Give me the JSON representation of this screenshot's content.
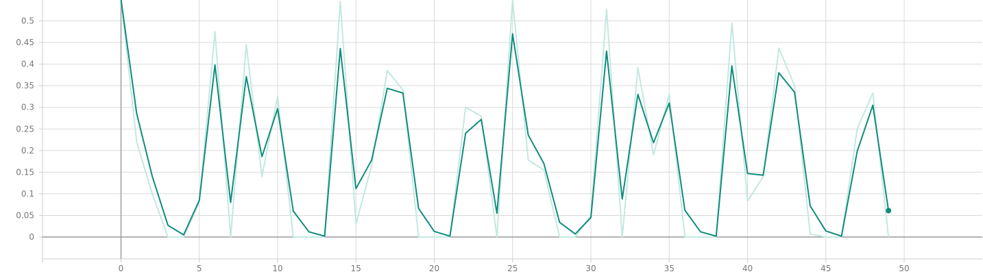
{
  "chart_data": {
    "type": "line",
    "title": "",
    "xlabel": "",
    "ylabel": "",
    "xlim": [
      -5,
      55
    ],
    "ylim": [
      -0.05,
      0.55
    ],
    "grid": true,
    "x_ticks": [
      "0",
      "5",
      "10",
      "15",
      "20",
      "25",
      "30",
      "35",
      "40",
      "45",
      "50"
    ],
    "y_ticks": [
      "0",
      "0.05",
      "0.1",
      "0.15",
      "0.2",
      "0.25",
      "0.3",
      "0.35",
      "0.4",
      "0.45",
      "0.5"
    ],
    "colors": {
      "smoothed": "#0f8c7b",
      "raw": "#c3e8e1"
    },
    "series": [
      {
        "role": "raw",
        "x": [
          0,
          1,
          2,
          3,
          4,
          5,
          6,
          7,
          8,
          9,
          10,
          11,
          12,
          13,
          14,
          15,
          16,
          17,
          18,
          19,
          20,
          21,
          22,
          23,
          24,
          25,
          26,
          27,
          28,
          29,
          30,
          31,
          32,
          33,
          34,
          35,
          36,
          37,
          38,
          39,
          40,
          41,
          42,
          43,
          44,
          45,
          46,
          47,
          48,
          49
        ],
        "values": [
          0.55,
          0.22,
          0.1,
          0.0,
          0.0,
          0.08,
          0.475,
          0.0,
          0.445,
          0.14,
          0.325,
          0.0,
          0.0,
          0.0,
          0.545,
          0.03,
          0.165,
          0.385,
          0.34,
          0.0,
          0.0,
          0.0,
          0.3,
          0.28,
          0.0,
          0.55,
          0.178,
          0.155,
          0.0,
          0.0,
          0.05,
          0.527,
          0.0,
          0.392,
          0.19,
          0.33,
          0.0,
          0.0,
          0.0,
          0.495,
          0.083,
          0.14,
          0.437,
          0.35,
          0.007,
          0.0,
          0.0,
          0.25,
          0.333,
          0.0
        ]
      },
      {
        "role": "smoothed",
        "x": [
          0,
          1,
          2,
          3,
          4,
          5,
          6,
          7,
          8,
          9,
          10,
          11,
          12,
          13,
          14,
          15,
          16,
          17,
          18,
          19,
          20,
          21,
          22,
          23,
          24,
          25,
          26,
          27,
          28,
          29,
          30,
          31,
          32,
          33,
          34,
          35,
          36,
          37,
          38,
          39,
          40,
          41,
          42,
          43,
          44,
          45,
          46,
          47,
          48,
          49
        ],
        "values": [
          0.55,
          0.286,
          0.14,
          0.027,
          0.005,
          0.085,
          0.398,
          0.08,
          0.371,
          0.186,
          0.297,
          0.06,
          0.012,
          0.002,
          0.436,
          0.112,
          0.178,
          0.344,
          0.333,
          0.066,
          0.013,
          0.002,
          0.24,
          0.272,
          0.055,
          0.47,
          0.236,
          0.17,
          0.034,
          0.007,
          0.045,
          0.43,
          0.088,
          0.33,
          0.218,
          0.31,
          0.062,
          0.012,
          0.002,
          0.396,
          0.147,
          0.143,
          0.38,
          0.335,
          0.072,
          0.014,
          0.002,
          0.198,
          0.305,
          0.061
        ]
      }
    ]
  }
}
